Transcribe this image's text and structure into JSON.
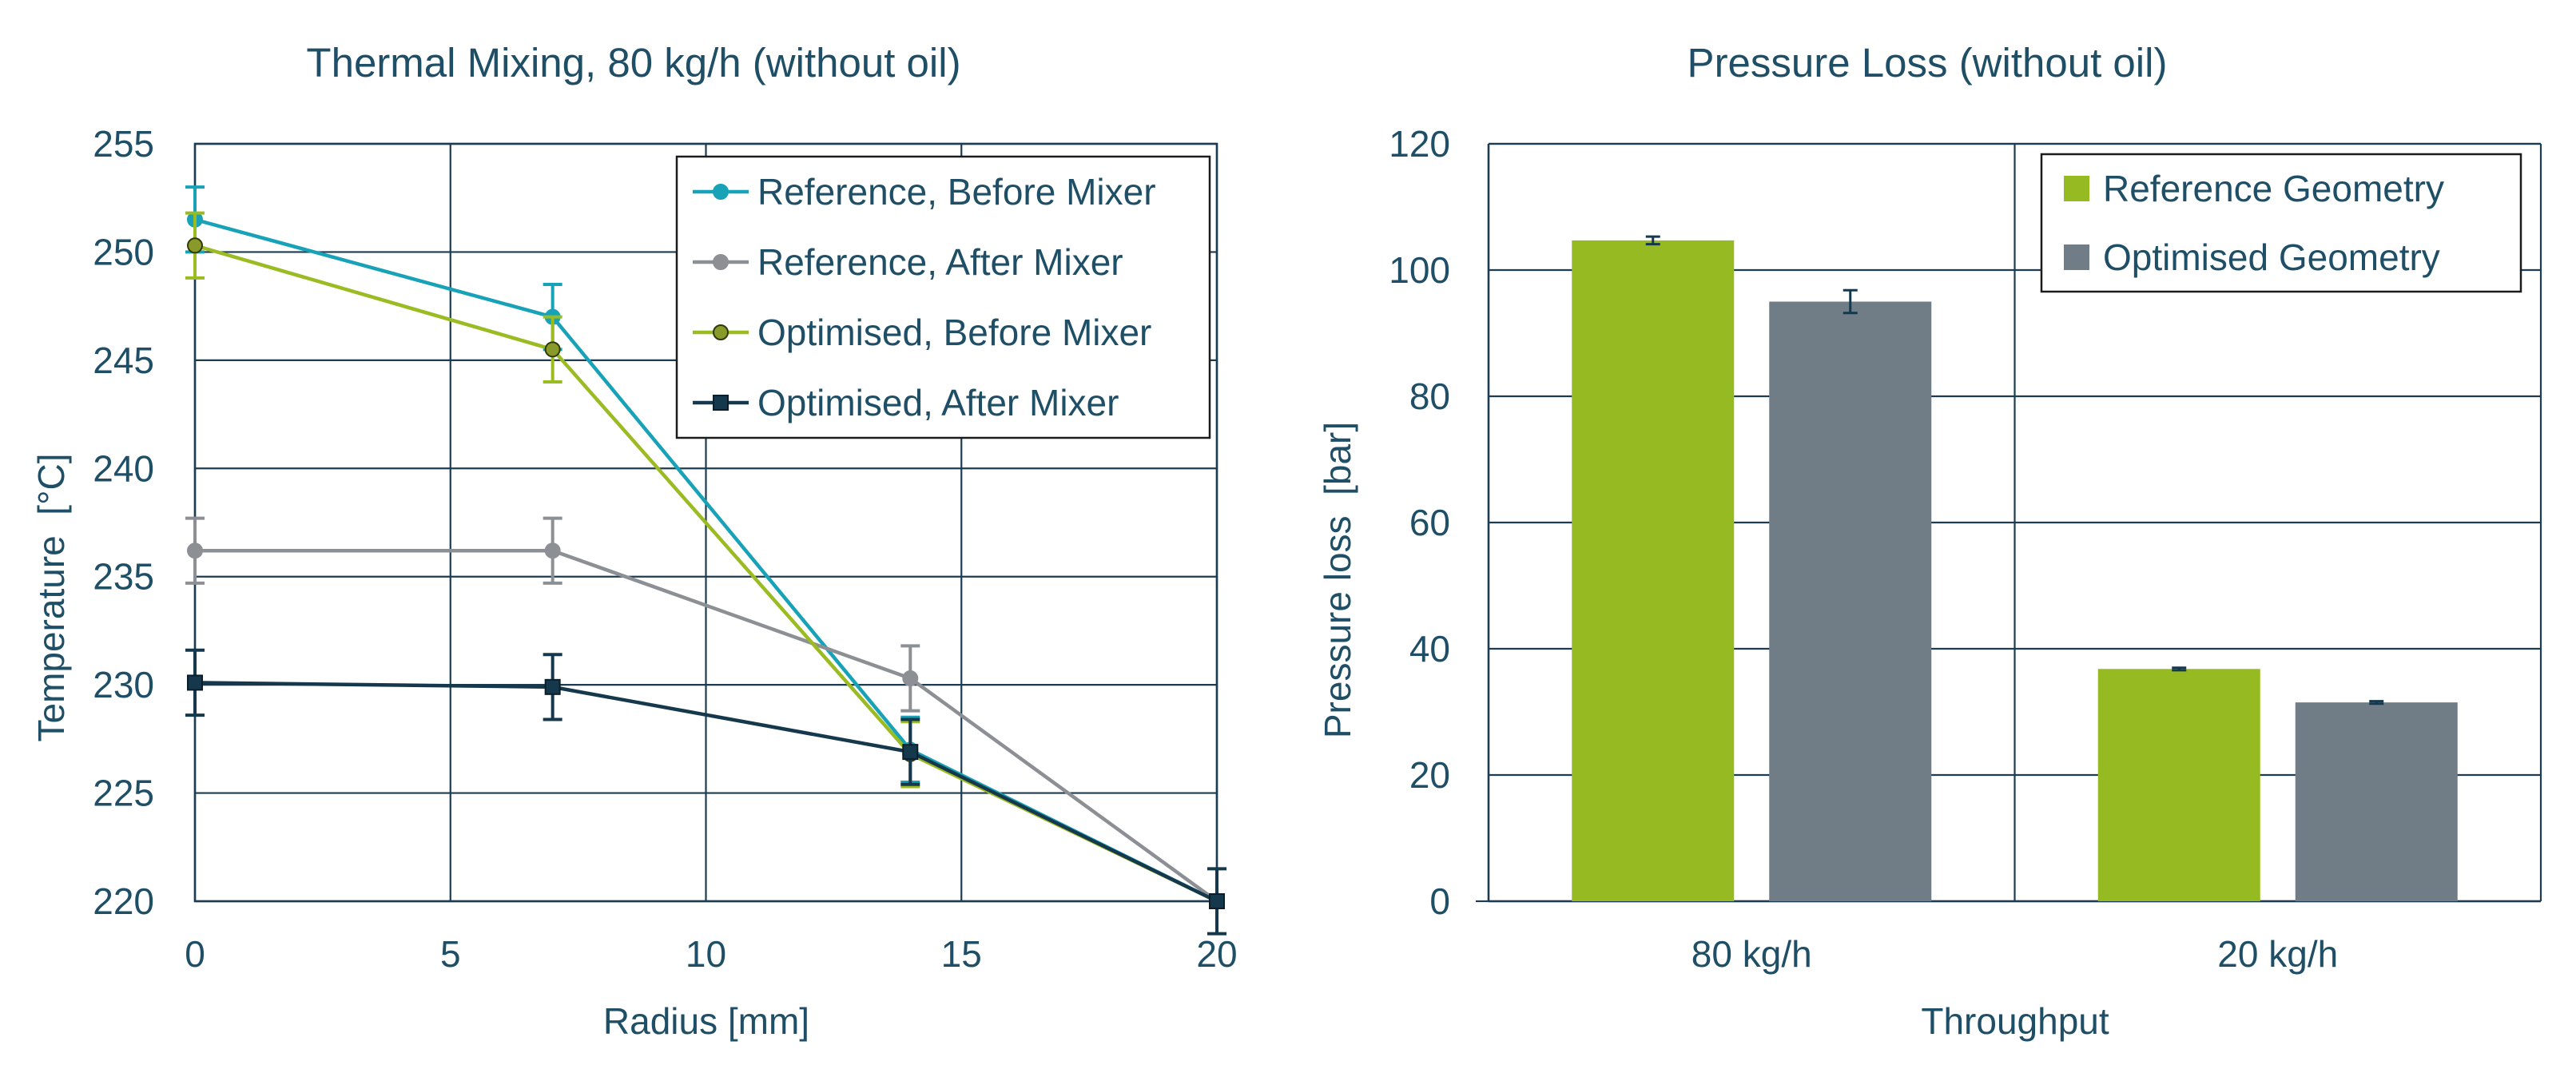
{
  "colors": {
    "text": "#1f4e67",
    "grid": "#1d3c52",
    "reference_before": "#17a2b8",
    "reference_after": "#8c8f94",
    "optimised_before": "#9bbb22",
    "optimised_after": "#15384d",
    "reference_geometry": "#96bb22",
    "optimised_geometry": "#717d86"
  },
  "chart_data": [
    {
      "type": "line",
      "title": "Thermal Mixing, 80 kg/h (without oil)",
      "xlabel": "Radius [mm]",
      "ylabel": "Temperature  [°C]",
      "xlim": [
        0,
        20
      ],
      "ylim": [
        220,
        255
      ],
      "xticks": [
        0,
        5,
        10,
        15,
        20
      ],
      "yticks": [
        220,
        225,
        230,
        235,
        240,
        245,
        250,
        255
      ],
      "grid": true,
      "legend_position": "top-right",
      "series": [
        {
          "name": "Reference, Before Mixer",
          "color_key": "reference_before",
          "marker": "circle",
          "x": [
            0,
            7,
            14,
            20
          ],
          "y": [
            251.5,
            247,
            227,
            220
          ],
          "err": [
            1.5,
            1.5,
            1.5,
            0
          ]
        },
        {
          "name": "Reference, After Mixer",
          "color_key": "reference_after",
          "marker": "circle",
          "x": [
            0,
            7,
            14,
            20
          ],
          "y": [
            236.2,
            236.2,
            230.3,
            220
          ],
          "err": [
            1.5,
            1.5,
            1.5,
            0
          ]
        },
        {
          "name": "Optimised, Before Mixer",
          "color_key": "optimised_before",
          "marker": "circle",
          "x": [
            0,
            7,
            14,
            20
          ],
          "y": [
            250.3,
            245.5,
            226.8,
            220
          ],
          "err": [
            1.5,
            1.5,
            1.5,
            0
          ]
        },
        {
          "name": "Optimised, After Mixer",
          "color_key": "optimised_after",
          "marker": "square",
          "x": [
            0,
            7,
            14,
            20
          ],
          "y": [
            230.1,
            229.9,
            226.9,
            220
          ],
          "err": [
            1.5,
            1.5,
            1.5,
            1.5
          ]
        }
      ]
    },
    {
      "type": "bar",
      "title": "Pressure Loss (without oil)",
      "xlabel": "Throughput",
      "ylabel": "Pressure loss  [bar]",
      "categories": [
        "80 kg/h",
        "20 kg/h"
      ],
      "ylim": [
        0,
        120
      ],
      "yticks": [
        0,
        20,
        40,
        60,
        80,
        100,
        120
      ],
      "grid": true,
      "legend_position": "top-right",
      "series": [
        {
          "name": "Reference Geometry",
          "color_key": "reference_geometry",
          "values": [
            104.7,
            36.8
          ],
          "err": [
            0.6,
            0.2
          ]
        },
        {
          "name": "Optimised Geometry",
          "color_key": "optimised_geometry",
          "values": [
            95,
            31.5
          ],
          "err": [
            1.8,
            0.2
          ]
        }
      ]
    }
  ]
}
